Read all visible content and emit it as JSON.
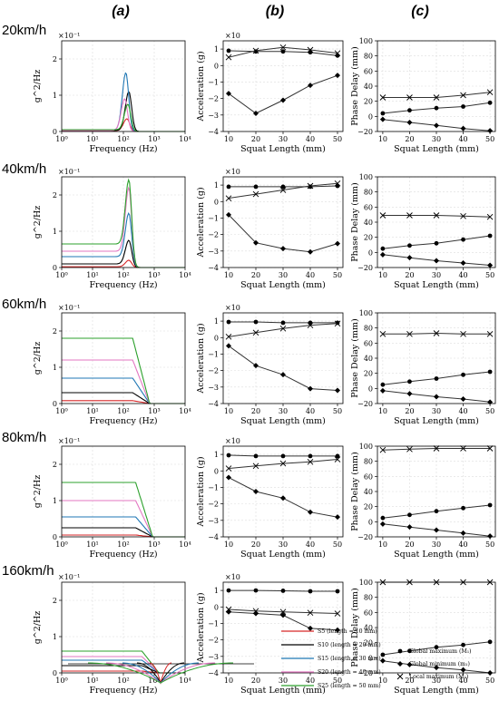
{
  "column_labels": [
    "(a)",
    "(b)",
    "(c)"
  ],
  "speeds": [
    "20km/h",
    "40km/h",
    "60km/h",
    "80km/h",
    "160km/h"
  ],
  "chart_data": [
    {
      "type": "line",
      "panel": "a",
      "xlabel": "Frequency (Hz)",
      "ylabel": "g^2/Hz",
      "yscale_note": "×10⁻¹",
      "xscale": "log",
      "xlim": [
        1,
        10000
      ],
      "ylim": [
        0,
        2.5
      ],
      "yticks": [
        "0",
        "1",
        "2"
      ],
      "xticks": [
        "10⁰",
        "10¹",
        "10²",
        "10³",
        "10⁴"
      ],
      "series_names": [
        "S5 (length = 10 mm)",
        "S10 (length = 20 mm)",
        "S15 (length = 30 mm)",
        "S20 (length = 40 mm)",
        "S25 (length = 50 mm)"
      ],
      "colors": [
        "#d62728",
        "#000000",
        "#1f77b4",
        "#e377c2",
        "#2ca02c"
      ],
      "rows": [
        {
          "kind": "peak",
          "baseline": [
            0.02,
            0.03,
            0.04,
            0.03,
            0.05
          ],
          "peak_hz": [
            130,
            150,
            120,
            110,
            140
          ],
          "peak": [
            0.35,
            1.1,
            1.62,
            0.9,
            0.75
          ]
        },
        {
          "kind": "peak",
          "baseline": [
            0.02,
            0.1,
            0.3,
            0.45,
            0.65
          ],
          "peak_hz": [
            150,
            150,
            150,
            150,
            150
          ],
          "peak": [
            0.2,
            0.75,
            1.5,
            2.2,
            2.42
          ]
        },
        {
          "kind": "plateau",
          "plateau": [
            0.08,
            0.3,
            0.7,
            1.2,
            1.8
          ],
          "cutoff_hz": 200
        },
        {
          "kind": "plateau",
          "plateau": [
            0.05,
            0.25,
            0.55,
            1.0,
            1.5
          ],
          "cutoff_hz": 250
        },
        {
          "kind": "plateau",
          "plateau": [
            0.05,
            0.2,
            0.35,
            0.45,
            0.6
          ],
          "cutoff_hz": 400
        }
      ]
    },
    {
      "type": "line",
      "panel": "b",
      "xlabel": "Squat Length (mm)",
      "ylabel": "Acceleration (g)",
      "yscale_note": "×10",
      "x": [
        10,
        20,
        30,
        40,
        50
      ],
      "ylim": [
        -4,
        1.5
      ],
      "yticks": [
        "1",
        "0",
        "−1",
        "−2",
        "−3",
        "−4"
      ],
      "xticks": [
        "10",
        "20",
        "30",
        "40",
        "50"
      ],
      "rows": [
        {
          "global_max": [
            0.9,
            0.85,
            0.85,
            0.8,
            0.6
          ],
          "global_min": [
            -1.7,
            -2.9,
            -2.1,
            -1.2,
            -0.6
          ],
          "local_max": [
            0.5,
            0.9,
            1.1,
            0.95,
            0.75
          ]
        },
        {
          "global_max": [
            0.9,
            0.9,
            0.9,
            0.9,
            0.95
          ],
          "global_min": [
            -0.8,
            -2.5,
            -2.85,
            -3.05,
            -2.55
          ],
          "local_max": [
            0.2,
            0.45,
            0.7,
            0.95,
            1.1
          ]
        },
        {
          "global_max": [
            0.95,
            0.95,
            0.9,
            0.9,
            0.9
          ],
          "global_min": [
            -0.5,
            -1.7,
            -2.25,
            -3.1,
            -3.2
          ],
          "local_max": [
            0.05,
            0.3,
            0.55,
            0.75,
            0.85
          ]
        },
        {
          "global_max": [
            0.95,
            0.9,
            0.9,
            0.9,
            0.9
          ],
          "global_min": [
            -0.4,
            -1.25,
            -1.65,
            -2.5,
            -2.8
          ],
          "local_max": [
            0.15,
            0.3,
            0.45,
            0.55,
            0.7
          ]
        },
        {
          "global_max": [
            1.0,
            1.0,
            0.98,
            0.95,
            0.95
          ],
          "global_min": [
            -0.3,
            -0.4,
            -0.5,
            -1.3,
            -1.4
          ],
          "local_max": [
            -0.15,
            -0.25,
            -0.3,
            -0.35,
            -0.4
          ]
        }
      ]
    },
    {
      "type": "line",
      "panel": "c",
      "xlabel": "Squat Length (mm)",
      "ylabel": "Phase Delay (mm)",
      "x": [
        10,
        20,
        30,
        40,
        50
      ],
      "ylim": [
        -20,
        100
      ],
      "yticks": [
        "100",
        "80",
        "60",
        "40",
        "20",
        "0",
        "−20"
      ],
      "xticks": [
        "10",
        "20",
        "30",
        "40",
        "50"
      ],
      "rows": [
        {
          "global_max": [
            4,
            8,
            11,
            13,
            18
          ],
          "global_min": [
            -4,
            -8,
            -12,
            -16,
            -19
          ],
          "local_max": [
            25,
            25,
            25,
            28,
            32
          ]
        },
        {
          "global_max": [
            5,
            9,
            12,
            17,
            22
          ],
          "global_min": [
            -3,
            -7,
            -11,
            -14,
            -17
          ],
          "local_max": [
            49,
            49,
            49,
            48,
            47
          ]
        },
        {
          "global_max": [
            5,
            9,
            13,
            18,
            22
          ],
          "global_min": [
            -3,
            -7,
            -11,
            -14,
            -18
          ],
          "local_max": [
            72,
            72,
            73,
            72,
            72
          ]
        },
        {
          "global_max": [
            5,
            9,
            14,
            18,
            22
          ],
          "global_min": [
            -3,
            -7,
            -11,
            -15,
            -19
          ],
          "local_max": [
            95,
            96,
            97,
            97,
            97
          ]
        },
        {
          "global_max": [
            4,
            9,
            14,
            17,
            21
          ],
          "global_min": [
            -4,
            -9,
            -13,
            -16,
            -20
          ],
          "local_max": [
            100,
            100,
            100,
            100,
            100
          ]
        }
      ]
    }
  ],
  "legend": {
    "series": [
      "S5 (length = 10 mm)",
      "S10 (length = 20 mm)",
      "S15 (length = 30 mm)",
      "S20 (length = 40 mm)",
      "S25 (length = 50 mm)"
    ],
    "markers": [
      "Global maximum (M₁)",
      "Global minimum (m₁)",
      "Local maximum (M₂)"
    ]
  }
}
